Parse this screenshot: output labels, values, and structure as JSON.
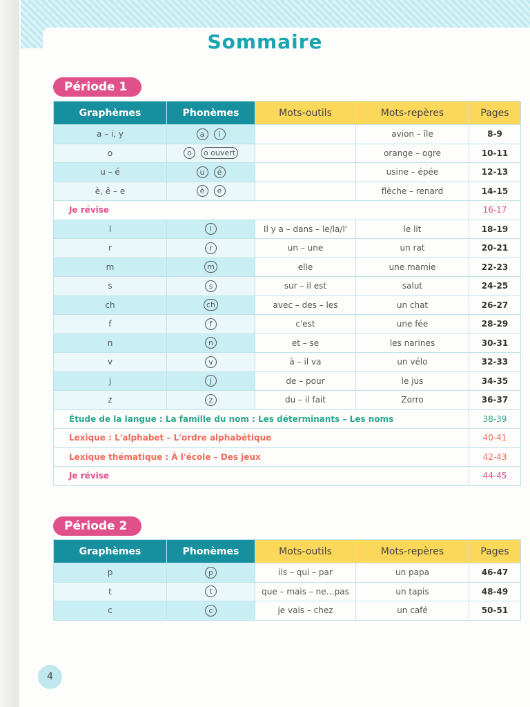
{
  "title": "Sommaire",
  "headers": [
    "Graphèmes",
    "Phonèmes",
    "Mots-outils",
    "Mots-repères",
    "Pages"
  ],
  "periode1": {
    "label": "Période 1",
    "rows": [
      {
        "g": "a – i, y",
        "ph": [
          "a",
          "i"
        ],
        "mo": "",
        "mr": "avion – île",
        "p": "8-9"
      },
      {
        "g": "o",
        "ph": [
          "o",
          "o ouvert"
        ],
        "mo": "",
        "mr": "orange – ogre",
        "p": "10-11"
      },
      {
        "g": "u – é",
        "ph": [
          "u",
          "é"
        ],
        "mo": "",
        "mr": "usine – épée",
        "p": "12-13"
      },
      {
        "g": "è, ê – e",
        "ph": [
          "è",
          "e"
        ],
        "mo": "",
        "mr": "flèche – renard",
        "p": "14-15"
      },
      {
        "span": "Je révise",
        "p": "16-17",
        "color": "pink"
      },
      {
        "g": "l",
        "ph": [
          "l"
        ],
        "mo": "Il y a – dans – le/la/l'",
        "mr": "le lit",
        "p": "18-19"
      },
      {
        "g": "r",
        "ph": [
          "r"
        ],
        "mo": "un – une",
        "mr": "un rat",
        "p": "20-21"
      },
      {
        "g": "m",
        "ph": [
          "m"
        ],
        "mo": "elle",
        "mr": "une mamie",
        "p": "22-23"
      },
      {
        "g": "s",
        "ph": [
          "s"
        ],
        "mo": "sur – il est",
        "mr": "salut",
        "p": "24-25"
      },
      {
        "g": "ch",
        "ph": [
          "ch"
        ],
        "mo": "avec – des – les",
        "mr": "un chat",
        "p": "26-27"
      },
      {
        "g": "f",
        "ph": [
          "f"
        ],
        "mo": "c'est",
        "mr": "une fée",
        "p": "28-29"
      },
      {
        "g": "n",
        "ph": [
          "n"
        ],
        "mo": "et – se",
        "mr": "les narines",
        "p": "30-31"
      },
      {
        "g": "v",
        "ph": [
          "v"
        ],
        "mo": "à – il va",
        "mr": "un vélo",
        "p": "32-33"
      },
      {
        "g": "j",
        "ph": [
          "j"
        ],
        "mo": "de – pour",
        "mr": "le jus",
        "p": "34-35"
      },
      {
        "g": "z",
        "ph": [
          "z"
        ],
        "mo": "du – il fait",
        "mr": "Zorro",
        "p": "36-37"
      },
      {
        "span": "Étude de la langue : La famille du nom : Les déterminants – Les noms",
        "p": "38-39",
        "color": "green"
      },
      {
        "span": "Lexique : L'alphabet – L'ordre alphabétique",
        "p": "40-41",
        "color": "orange"
      },
      {
        "span": "Lexique thématique : À l'école – Des jeux",
        "p": "42-43",
        "color": "orange"
      },
      {
        "span": "Je révise",
        "p": "44-45",
        "color": "pink"
      }
    ]
  },
  "periode2": {
    "label": "Période 2",
    "rows": [
      {
        "g": "p",
        "ph": [
          "p"
        ],
        "mo": "ils – qui – par",
        "mr": "un papa",
        "p": "46-47"
      },
      {
        "g": "t",
        "ph": [
          "t"
        ],
        "mo": "que – mais – ne…pas",
        "mr": "un tapis",
        "p": "48-49"
      },
      {
        "g": "c",
        "ph": [
          "c"
        ],
        "mo": "je vais – chez",
        "mr": "un café",
        "p": "50-51"
      }
    ]
  },
  "page_number": "4"
}
